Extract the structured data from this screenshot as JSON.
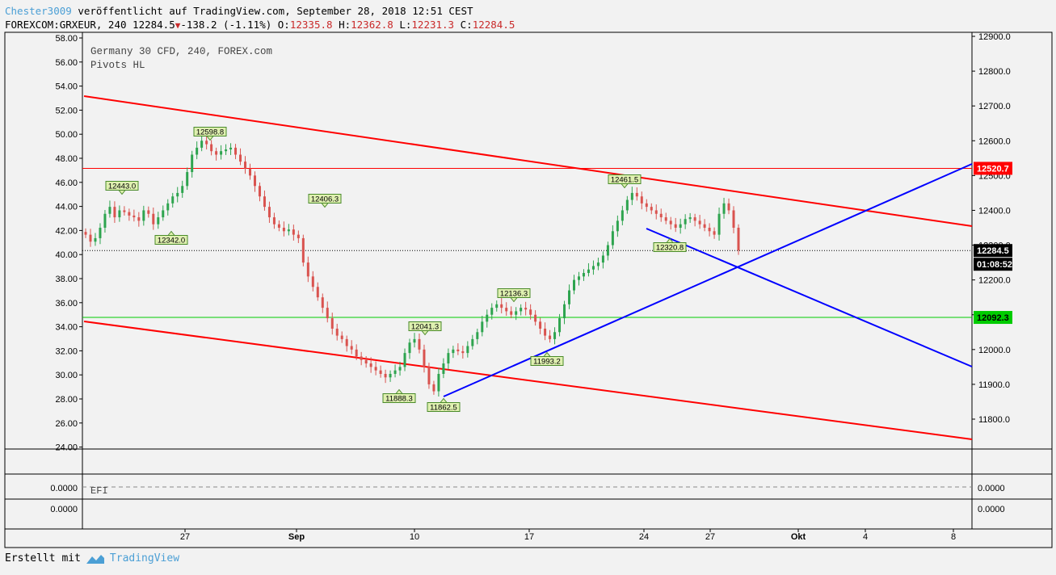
{
  "header": {
    "author": "Chester3009",
    "published": " veröffentlicht auf TradingView.com, September 28, 2018 12:51 CEST",
    "symbol": "FOREXCOM:GRXEUR, 240",
    "last": "12284.5",
    "change": "-138.2 (-1.11%)",
    "o_label": "O:",
    "o": "12335.8",
    "h_label": "H:",
    "h": "12362.8",
    "l_label": "L:",
    "l": "12231.3",
    "c_label": "C:",
    "c": "12284.5"
  },
  "legend": {
    "line1": "Germany 30 CFD, 240, FOREX.com",
    "line2": "Pivots HL"
  },
  "footer": {
    "created": "Erstellt mit",
    "brand": "TradingView"
  },
  "colors": {
    "up": "#2ea44f",
    "down": "#d9534f",
    "channel": "#ff0000",
    "trend": "#0000ff",
    "support": "#00cc00"
  },
  "chart_data": {
    "type": "candlestick",
    "right_axis": {
      "min": 11730,
      "max": 12910,
      "ticks": [
        "12900.0",
        "12800.0",
        "12700.0",
        "12600.0",
        "12500.0",
        "12400.0",
        "12300.0",
        "12200.0",
        "12100.0",
        "12000.0",
        "11900.0",
        "11800.0"
      ]
    },
    "left_axis": {
      "ticks": [
        "58.00",
        "56.00",
        "54.00",
        "52.00",
        "50.00",
        "48.00",
        "46.00",
        "44.00",
        "42.00",
        "40.00",
        "38.00",
        "36.00",
        "34.00",
        "32.00",
        "30.00",
        "28.00",
        "26.00",
        "24.00"
      ]
    },
    "x_axis": {
      "ticks": [
        "27",
        "Sep",
        "10",
        "17",
        "24",
        "27",
        "Okt",
        "4",
        "8"
      ]
    },
    "candles_close": [
      12330,
      12310,
      12320,
      12350,
      12390,
      12410,
      12380,
      12400,
      12395,
      12385,
      12380,
      12370,
      12400,
      12390,
      12360,
      12380,
      12400,
      12420,
      12440,
      12450,
      12470,
      12510,
      12560,
      12580,
      12600,
      12590,
      12570,
      12560,
      12570,
      12575,
      12580,
      12560,
      12540,
      12520,
      12500,
      12470,
      12440,
      12410,
      12380,
      12360,
      12350,
      12340,
      12345,
      12330,
      12320,
      12250,
      12210,
      12180,
      12150,
      12120,
      12090,
      12060,
      12040,
      12030,
      12010,
      12000,
      11980,
      11970,
      11960,
      11950,
      11940,
      11930,
      11920,
      11930,
      11940,
      11950,
      11990,
      12020,
      12030,
      12000,
      11950,
      11900,
      11880,
      11930,
      11960,
      11990,
      12000,
      11995,
      11990,
      12010,
      12030,
      12050,
      12080,
      12100,
      12120,
      12130,
      12120,
      12110,
      12100,
      12110,
      12120,
      12115,
      12100,
      12080,
      12060,
      12040,
      12030,
      12050,
      12090,
      12130,
      12170,
      12200,
      12210,
      12220,
      12230,
      12240,
      12250,
      12270,
      12300,
      12340,
      12370,
      12400,
      12430,
      12450,
      12440,
      12420,
      12410,
      12400,
      12390,
      12380,
      12370,
      12360,
      12350,
      12360,
      12375,
      12380,
      12370,
      12360,
      12350,
      12340,
      12330,
      12390,
      12420,
      12400,
      12350,
      12285
    ],
    "series_last_values": {
      "price": "12284.5",
      "countdown": "01:08:52",
      "resistance": "12520.7",
      "support": "12092.3"
    },
    "pivots": [
      {
        "label": "12443.0",
        "type": "high"
      },
      {
        "label": "12342.0",
        "type": "low"
      },
      {
        "label": "12598.8",
        "type": "high"
      },
      {
        "label": "12406.3",
        "type": "high"
      },
      {
        "label": "12041.3",
        "type": "high"
      },
      {
        "label": "11888.3",
        "type": "low"
      },
      {
        "label": "11862.5",
        "type": "low"
      },
      {
        "label": "12136.3",
        "type": "high"
      },
      {
        "label": "11993.2",
        "type": "low"
      },
      {
        "label": "12461.5",
        "type": "high"
      },
      {
        "label": "12320.8",
        "type": "low"
      }
    ],
    "horizontal_lines": [
      {
        "value": 12520.7,
        "color": "#ff0000"
      },
      {
        "value": 12092.3,
        "color": "#00cc00"
      },
      {
        "value": 12284.5,
        "style": "dotted",
        "color": "#000000"
      }
    ],
    "efi": {
      "label": "EFI",
      "value": "0.0000",
      "value2": "0.0000"
    }
  }
}
